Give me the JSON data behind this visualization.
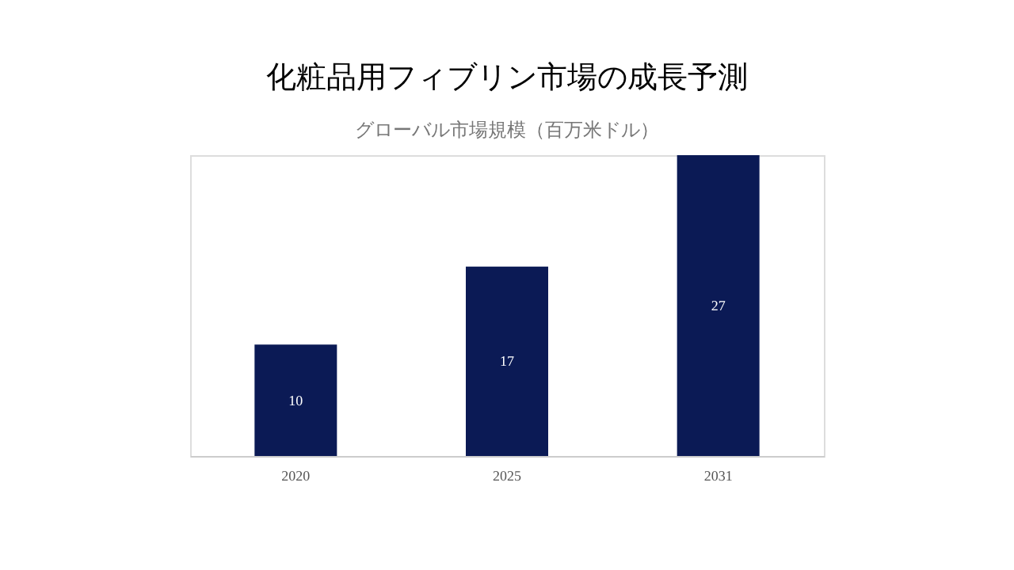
{
  "chart_data": {
    "type": "bar",
    "title": "化粧品用フィブリン市場の成長予測",
    "subtitle": "グローバル市場規模（百万米ドル）",
    "categories": [
      "2020",
      "2025",
      "2031"
    ],
    "values": [
      10,
      17,
      27
    ],
    "color": "#0b1a55",
    "data_labels": true,
    "tick_labels": "x"
  }
}
